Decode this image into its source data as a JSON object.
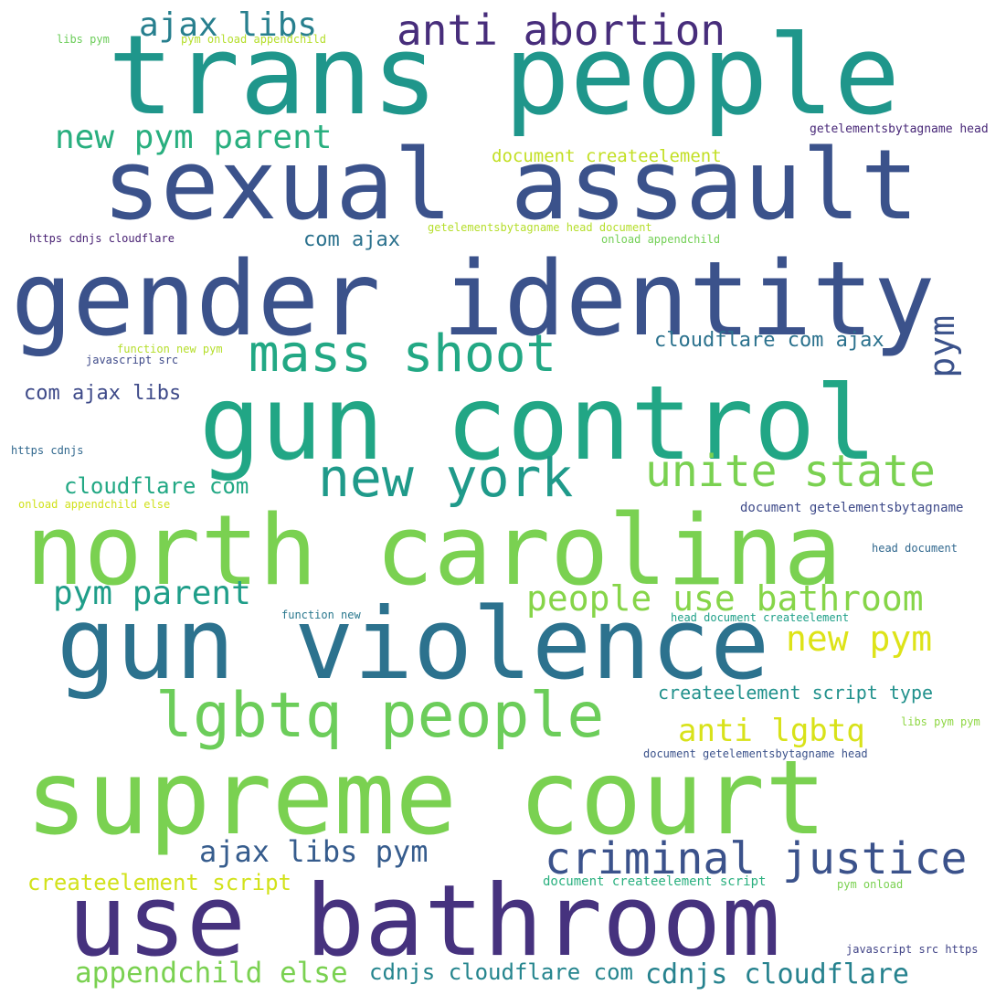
{
  "word_cloud": {
    "words": [
      {
        "text": "trans people",
        "color": "#1f968b"
      },
      {
        "text": "gender identity",
        "color": "#3b528b"
      },
      {
        "text": "sexual assault",
        "color": "#3b528b"
      },
      {
        "text": "gun control",
        "color": "#21a685"
      },
      {
        "text": "north carolina",
        "color": "#7ad151"
      },
      {
        "text": "supreme court",
        "color": "#7ad151"
      },
      {
        "text": "gun violence",
        "color": "#2c728e"
      },
      {
        "text": "use bathroom",
        "color": "#46327e"
      },
      {
        "text": "anti abortion",
        "color": "#472d7b"
      },
      {
        "text": "mass shoot",
        "color": "#22a884"
      },
      {
        "text": "new york",
        "color": "#1f9a8a"
      },
      {
        "text": "unite state",
        "color": "#7ad151"
      },
      {
        "text": "lgbtq people",
        "color": "#6ccd5a"
      },
      {
        "text": "criminal justice",
        "color": "#3b528b"
      },
      {
        "text": "ajax libs",
        "color": "#277f8e"
      },
      {
        "text": "new pym parent",
        "color": "#29af7f"
      },
      {
        "text": "people use bathroom",
        "color": "#86d549"
      },
      {
        "text": "new pym",
        "color": "#dde318"
      },
      {
        "text": "anti lgbtq",
        "color": "#d8e219"
      },
      {
        "text": "pym parent",
        "color": "#1f9e89"
      },
      {
        "text": "ajax libs pym",
        "color": "#365c8d"
      },
      {
        "text": "appendchild else",
        "color": "#7ad151"
      },
      {
        "text": "cdnjs cloudflare com",
        "color": "#25858e"
      },
      {
        "text": "cdnjs cloudflare",
        "color": "#26828e"
      },
      {
        "text": "cloudflare com ajax",
        "color": "#2c728e"
      },
      {
        "text": "cloudflare com",
        "color": "#22a884"
      },
      {
        "text": "com ajax libs",
        "color": "#3e4a89"
      },
      {
        "text": "createelement script type",
        "color": "#21918c"
      },
      {
        "text": "createelement script",
        "color": "#d2e21b"
      },
      {
        "text": "document createelement",
        "color": "#c2df23"
      },
      {
        "text": "com ajax",
        "color": "#2c728e"
      },
      {
        "text": "libs pym",
        "color": "#6ccd5a"
      },
      {
        "text": "pym onload appendchild",
        "color": "#b5de2b"
      },
      {
        "text": "getelementsbytagname head",
        "color": "#482878"
      },
      {
        "text": "https cdnjs cloudflare",
        "color": "#482173"
      },
      {
        "text": "getelementsbytagname head document",
        "color": "#b5de2b"
      },
      {
        "text": "onload appendchild",
        "color": "#73d056"
      },
      {
        "text": "function new pym",
        "color": "#b5de2b"
      },
      {
        "text": "javascript src",
        "color": "#3e4a89"
      },
      {
        "text": "https cdnjs",
        "color": "#31688e"
      },
      {
        "text": "onload appendchild else",
        "color": "#d0e11c"
      },
      {
        "text": "document getelementsbytagname",
        "color": "#3e4a89"
      },
      {
        "text": "head document",
        "color": "#31688e"
      },
      {
        "text": "function new",
        "color": "#2a788e"
      },
      {
        "text": "head document createelement",
        "color": "#1fa088"
      },
      {
        "text": "libs pym pym",
        "color": "#8fd744"
      },
      {
        "text": "document getelementsbytagname head",
        "color": "#3b528b"
      },
      {
        "text": "document createelement script",
        "color": "#2ab07f"
      },
      {
        "text": "pym onload",
        "color": "#7ad151"
      },
      {
        "text": "javascript src https",
        "color": "#414487"
      },
      {
        "text": "pym",
        "color": "#3b528b"
      }
    ]
  }
}
